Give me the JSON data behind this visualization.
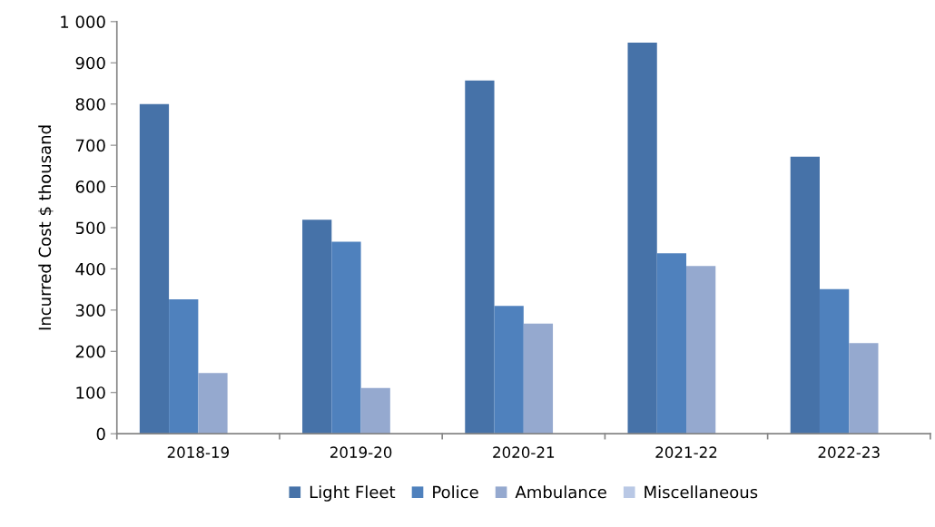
{
  "chart_data": {
    "type": "bar",
    "ylabel": "Incurred Cost $ thousand",
    "categories": [
      "2018-19",
      "2019-20",
      "2020-21",
      "2021-22",
      "2022-23"
    ],
    "series": [
      {
        "name": "Light Fleet",
        "color": "#4672a8",
        "values": [
          800,
          519,
          857,
          949,
          672
        ]
      },
      {
        "name": "Police",
        "color": "#4f81bd",
        "values": [
          326,
          466,
          310,
          438,
          351
        ]
      },
      {
        "name": "Ambulance",
        "color": "#95a9cf",
        "values": [
          147,
          111,
          267,
          407,
          220
        ]
      },
      {
        "name": "Miscellaneous",
        "color": "#b9c8e5",
        "values": [
          null,
          null,
          null,
          null,
          null
        ]
      }
    ],
    "ylim": [
      0,
      1000
    ],
    "yticks": [
      0,
      100,
      200,
      300,
      400,
      500,
      600,
      700,
      800,
      900,
      {
        "value": 1000,
        "label": "1 000"
      }
    ],
    "grid": false,
    "legend": "bottom"
  }
}
